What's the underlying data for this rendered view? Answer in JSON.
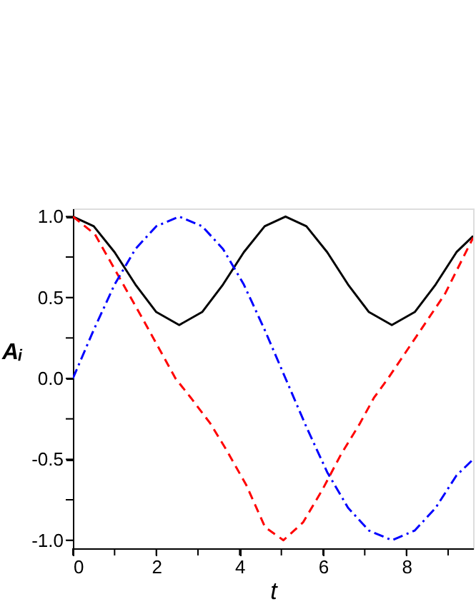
{
  "chart_data": {
    "type": "line",
    "xlabel": "t",
    "ylabel": "Aᵢ",
    "xlim": [
      0,
      9.6
    ],
    "ylim": [
      -1.05,
      1.05
    ],
    "xticks": [
      0,
      {
        "value": 1,
        "label": null
      },
      2,
      {
        "value": 3,
        "label": null
      },
      4,
      {
        "value": 5,
        "label": null
      },
      6,
      {
        "value": 7,
        "label": null
      },
      8,
      {
        "value": 9,
        "label": null
      }
    ],
    "yticks": [
      {
        "value": -1,
        "label": "-1.0"
      },
      {
        "value": -0.75,
        "label": null
      },
      -0.5,
      {
        "value": -0.25,
        "label": null
      },
      {
        "value": 0,
        "label": "0.0"
      },
      {
        "value": 0.25,
        "label": null
      },
      0.5,
      {
        "value": 0.75,
        "label": null
      },
      {
        "value": 1,
        "label": "1.0"
      }
    ],
    "grid": false,
    "marker": "none",
    "series": [
      {
        "color": "#000000",
        "line_style": "solid",
        "x": [
          0,
          0.5,
          1,
          1.5,
          2,
          2.55,
          3.1,
          3.6,
          4.1,
          4.6,
          5.1,
          5.6,
          6.1,
          6.6,
          7.1,
          7.65,
          8.2,
          8.7,
          9.2,
          9.6
        ],
        "values": [
          1,
          0.94,
          0.78,
          0.58,
          0.41,
          0.33,
          0.41,
          0.58,
          0.78,
          0.94,
          1,
          0.94,
          0.78,
          0.58,
          0.41,
          0.33,
          0.41,
          0.58,
          0.78,
          0.88
        ]
      },
      {
        "color": "#ff0000",
        "line_style": "dashed",
        "x": [
          0,
          0.53,
          0.99,
          1.67,
          2.12,
          2.46,
          2.83,
          3.3,
          3.7,
          4.16,
          4.61,
          5.05,
          5.52,
          5.98,
          6.43,
          6.88,
          7.22,
          7.56,
          8.24,
          8.92,
          9.6
        ],
        "values": [
          1,
          0.89,
          0.68,
          0.37,
          0.16,
          0.0,
          -0.12,
          -0.28,
          -0.45,
          -0.66,
          -0.92,
          -1.0,
          -0.89,
          -0.69,
          -0.47,
          -0.28,
          -0.12,
          0.0,
          0.26,
          0.52,
          0.87
        ]
      },
      {
        "color": "#0000ff",
        "line_style": "dashdot",
        "x": [
          0,
          0.5,
          1,
          1.5,
          2,
          2.55,
          3.1,
          3.6,
          4.1,
          4.6,
          5.1,
          5.6,
          6.1,
          6.6,
          7.1,
          7.65,
          8.2,
          8.7,
          9.2,
          9.6
        ],
        "values": [
          0,
          0.3,
          0.58,
          0.8,
          0.94,
          1,
          0.94,
          0.8,
          0.58,
          0.3,
          0,
          -0.3,
          -0.58,
          -0.8,
          -0.94,
          -1,
          -0.94,
          -0.8,
          -0.6,
          -0.5
        ]
      }
    ]
  }
}
